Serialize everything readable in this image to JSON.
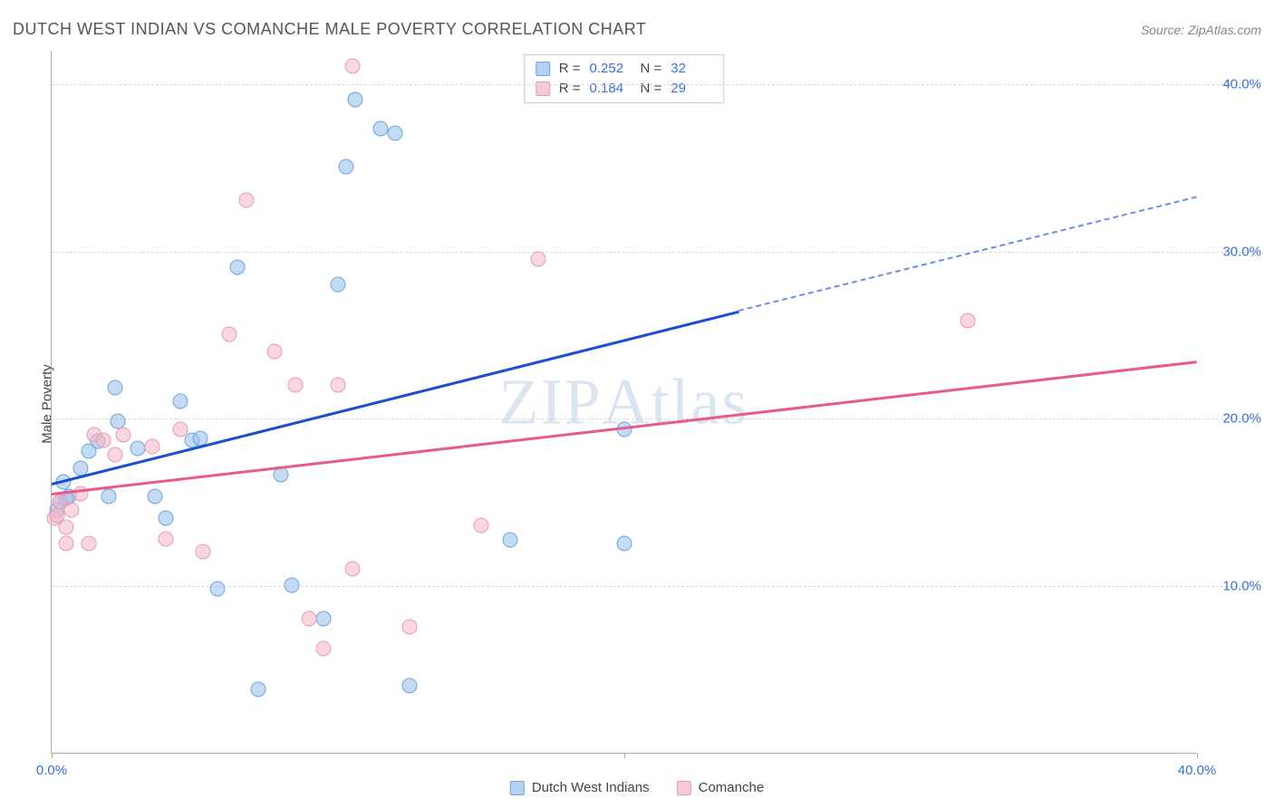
{
  "title": "DUTCH WEST INDIAN VS COMANCHE MALE POVERTY CORRELATION CHART",
  "source": "Source: ZipAtlas.com",
  "y_axis_label": "Male Poverty",
  "watermark": {
    "part1": "ZIP",
    "part2": "Atlas"
  },
  "chart": {
    "type": "scatter",
    "background_color": "#ffffff",
    "grid_color": "#d8d8d8",
    "axis_color": "#aaaaaa",
    "tick_label_color": "#3a6fd8",
    "tick_fontsize": 15,
    "xlim": [
      0,
      40
    ],
    "ylim": [
      0,
      42
    ],
    "x_ticks": [
      0,
      20,
      40
    ],
    "x_tick_labels": [
      "0.0%",
      "",
      "40.0%"
    ],
    "y_ticks": [
      10,
      20,
      30,
      40
    ],
    "y_tick_labels": [
      "10.0%",
      "20.0%",
      "30.0%",
      "40.0%"
    ],
    "marker_radius": 8.5,
    "series": [
      {
        "name": "Dutch West Indians",
        "color_fill": "rgba(150,190,235,0.55)",
        "color_stroke": "#6fa3df",
        "trend_color": "#1a4fd0",
        "r": "0.252",
        "n": "32",
        "trend": {
          "x0": 0,
          "y0": 16.2,
          "x1_solid": 24,
          "y1_solid": 26.5,
          "x1_dash": 40,
          "y1_dash": 33.3
        },
        "points": [
          [
            0.2,
            14.5
          ],
          [
            0.3,
            15.0
          ],
          [
            0.4,
            16.2
          ],
          [
            0.5,
            15.2
          ],
          [
            0.6,
            15.3
          ],
          [
            1.0,
            17.0
          ],
          [
            1.3,
            18.0
          ],
          [
            1.6,
            18.6
          ],
          [
            2.2,
            21.8
          ],
          [
            2.0,
            15.3
          ],
          [
            2.3,
            19.8
          ],
          [
            3.0,
            18.2
          ],
          [
            3.6,
            15.3
          ],
          [
            4.0,
            14.0
          ],
          [
            4.5,
            21.0
          ],
          [
            4.9,
            18.7
          ],
          [
            5.2,
            18.8
          ],
          [
            5.8,
            9.8
          ],
          [
            6.5,
            29.0
          ],
          [
            7.2,
            3.8
          ],
          [
            8.0,
            16.6
          ],
          [
            8.4,
            10.0
          ],
          [
            9.5,
            8.0
          ],
          [
            10.0,
            28.0
          ],
          [
            10.3,
            35.0
          ],
          [
            10.6,
            39.0
          ],
          [
            11.5,
            37.3
          ],
          [
            12.0,
            37.0
          ],
          [
            12.5,
            4.0
          ],
          [
            16.0,
            12.7
          ],
          [
            20.0,
            19.3
          ],
          [
            20.0,
            12.5
          ]
        ]
      },
      {
        "name": "Comanche",
        "color_fill": "rgba(245,180,200,0.55)",
        "color_stroke": "#e79bb0",
        "trend_color": "#e85a8a",
        "r": "0.184",
        "n": "29",
        "trend": {
          "x0": 0,
          "y0": 15.6,
          "x1_solid": 40,
          "y1_solid": 23.5
        },
        "points": [
          [
            0.1,
            14.0
          ],
          [
            0.2,
            14.2
          ],
          [
            0.3,
            15.0
          ],
          [
            0.5,
            12.5
          ],
          [
            0.5,
            13.5
          ],
          [
            0.7,
            14.5
          ],
          [
            1.0,
            15.5
          ],
          [
            1.3,
            12.5
          ],
          [
            1.5,
            19.0
          ],
          [
            1.8,
            18.7
          ],
          [
            2.2,
            17.8
          ],
          [
            2.5,
            19.0
          ],
          [
            3.5,
            18.3
          ],
          [
            4.0,
            12.8
          ],
          [
            4.5,
            19.3
          ],
          [
            5.3,
            12.0
          ],
          [
            6.2,
            25.0
          ],
          [
            6.8,
            33.0
          ],
          [
            7.8,
            24.0
          ],
          [
            8.5,
            22.0
          ],
          [
            9.0,
            8.0
          ],
          [
            9.5,
            6.2
          ],
          [
            10.0,
            22.0
          ],
          [
            10.5,
            11.0
          ],
          [
            10.5,
            41.0
          ],
          [
            12.5,
            7.5
          ],
          [
            15.0,
            13.6
          ],
          [
            17.0,
            29.5
          ],
          [
            32.0,
            25.8
          ]
        ]
      }
    ]
  },
  "legend_top": {
    "r_label": "R =",
    "n_label": "N ="
  },
  "legend_bottom_labels": [
    "Dutch West Indians",
    "Comanche"
  ]
}
